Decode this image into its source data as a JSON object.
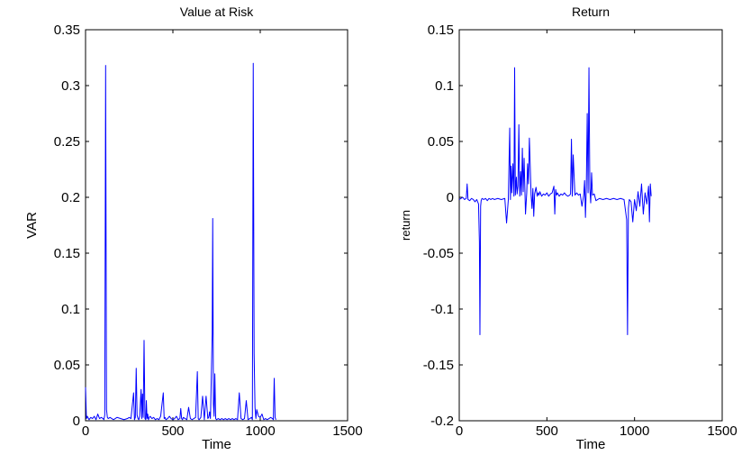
{
  "chart_data": [
    {
      "type": "line",
      "title": "Value at Risk",
      "xlabel": "Time",
      "ylabel": "VAR",
      "xlim": [
        0,
        1500
      ],
      "ylim": [
        0,
        0.35
      ],
      "x_ticks": [
        0,
        500,
        1000,
        1500
      ],
      "x_tick_labels": [
        "0",
        "500",
        "1000",
        "1500"
      ],
      "y_ticks": [
        0,
        0.05,
        0.1,
        0.15,
        0.2,
        0.25,
        0.3,
        0.35
      ],
      "y_tick_labels": [
        "0",
        "0.05",
        "0.1",
        "0.15",
        "0.2",
        "0.25",
        "0.3",
        "0.35"
      ],
      "grid": false,
      "color": "#0000ff",
      "series": [
        {
          "x": [
            0,
            5,
            10,
            20,
            30,
            40,
            50,
            60,
            70,
            80,
            90,
            100,
            105,
            110,
            115,
            120,
            125,
            130,
            140,
            150,
            160,
            170,
            180,
            200,
            220,
            240,
            250,
            260,
            275,
            280,
            285,
            290,
            295,
            300,
            305,
            310,
            318,
            322,
            326,
            330,
            335,
            340,
            345,
            348,
            352,
            356,
            360,
            365,
            370,
            380,
            390,
            400,
            410,
            420,
            430,
            445,
            450,
            455,
            460,
            470,
            480,
            490,
            500,
            510,
            520,
            530,
            540,
            545,
            550,
            555,
            560,
            570,
            580,
            590,
            600,
            610,
            620,
            630,
            640,
            645,
            650,
            660,
            670,
            680,
            690,
            700,
            705,
            710,
            715,
            720,
            725,
            728,
            732,
            736,
            740,
            745,
            750,
            760,
            770,
            780,
            790,
            800,
            810,
            820,
            830,
            840,
            850,
            860,
            870,
            880,
            890,
            900,
            910,
            920,
            930,
            940,
            950,
            955,
            960,
            965,
            970,
            975,
            980,
            990,
            1000,
            1010,
            1020,
            1030,
            1040,
            1050,
            1060,
            1070,
            1075,
            1080,
            1085,
            1090
          ],
          "y": [
            0.03,
            0.002,
            0.004,
            0.001,
            0.003,
            0.002,
            0.004,
            0.001,
            0.006,
            0.002,
            0.003,
            0.002,
            0.001,
            0.005,
            0.318,
            0.01,
            0.003,
            0.002,
            0.003,
            0.002,
            0.001,
            0.002,
            0.003,
            0.002,
            0.001,
            0.002,
            0.003,
            0.002,
            0.025,
            0.001,
            0.003,
            0.047,
            0.005,
            0.002,
            0.001,
            0.004,
            0.028,
            0.002,
            0.024,
            0.003,
            0.072,
            0.002,
            0.001,
            0.018,
            0.002,
            0.006,
            0.001,
            0.003,
            0.004,
            0.002,
            0.003,
            0.001,
            0.002,
            0.001,
            0.004,
            0.025,
            0.002,
            0.003,
            0.001,
            0.002,
            0.004,
            0.002,
            0.001,
            0.002,
            0.004,
            0.001,
            0.002,
            0.011,
            0.002,
            0.001,
            0.003,
            0.002,
            0.001,
            0.012,
            0.002,
            0.001,
            0.002,
            0.003,
            0.044,
            0.002,
            0.001,
            0.003,
            0.022,
            0.001,
            0.022,
            0.002,
            0.003,
            0.008,
            0.002,
            0.04,
            0.078,
            0.181,
            0.015,
            0.004,
            0.042,
            0.002,
            0.001,
            0.002,
            0.001,
            0.002,
            0.001,
            0.002,
            0.001,
            0.002,
            0.001,
            0.002,
            0.001,
            0.002,
            0.001,
            0.025,
            0.002,
            0.001,
            0.002,
            0.018,
            0.001,
            0.002,
            0.003,
            0.001,
            0.32,
            0.06,
            0.012,
            0.002,
            0.01,
            0.004,
            0.003,
            0.006,
            0.001,
            0.002,
            0.001,
            0.002,
            0.003,
            0.002,
            0.001,
            0.038,
            0.003,
            0.001
          ]
        }
      ]
    },
    {
      "type": "line",
      "title": "Return",
      "xlabel": "Time",
      "ylabel": "return",
      "xlim": [
        0,
        1500
      ],
      "ylim": [
        -0.2,
        0.15
      ],
      "x_ticks": [
        0,
        500,
        1000,
        1500
      ],
      "x_tick_labels": [
        "0",
        "500",
        "1000",
        "1500"
      ],
      "y_ticks": [
        -0.2,
        -0.15,
        -0.1,
        -0.05,
        0,
        0.05,
        0.1,
        0.15
      ],
      "y_tick_labels": [
        "-0.2",
        "-0.15",
        "-0.1",
        "-0.05",
        "0",
        "0.05",
        "0.1",
        "0.15"
      ],
      "grid": false,
      "color": "#0000ff",
      "series": [
        {
          "x": [
            0,
            10,
            20,
            30,
            40,
            45,
            50,
            60,
            70,
            80,
            90,
            100,
            110,
            115,
            118,
            122,
            125,
            130,
            140,
            150,
            160,
            170,
            180,
            190,
            200,
            220,
            240,
            260,
            270,
            280,
            288,
            292,
            296,
            300,
            306,
            312,
            316,
            320,
            326,
            330,
            335,
            340,
            345,
            350,
            355,
            360,
            365,
            370,
            378,
            385,
            390,
            395,
            400,
            410,
            415,
            420,
            425,
            430,
            438,
            445,
            450,
            455,
            460,
            470,
            480,
            490,
            500,
            510,
            520,
            530,
            540,
            545,
            550,
            555,
            560,
            570,
            580,
            590,
            600,
            610,
            620,
            630,
            635,
            640,
            645,
            650,
            660,
            670,
            680,
            690,
            700,
            710,
            715,
            720,
            725,
            730,
            735,
            740,
            745,
            750,
            755,
            760,
            770,
            780,
            790,
            800,
            820,
            840,
            860,
            880,
            900,
            920,
            940,
            955,
            960,
            965,
            970,
            980,
            990,
            1000,
            1010,
            1020,
            1030,
            1040,
            1050,
            1060,
            1070,
            1080,
            1085,
            1090,
            1095
          ],
          "y": [
            -0.002,
            -0.001,
            0.0,
            -0.002,
            -0.001,
            0.012,
            -0.002,
            -0.003,
            -0.001,
            -0.002,
            -0.004,
            -0.002,
            -0.006,
            -0.04,
            -0.123,
            -0.008,
            -0.003,
            -0.001,
            -0.002,
            -0.001,
            -0.003,
            -0.001,
            -0.002,
            -0.001,
            -0.002,
            -0.001,
            -0.002,
            -0.001,
            -0.023,
            -0.002,
            0.062,
            -0.002,
            0.028,
            0.004,
            0.03,
            0.001,
            0.116,
            0.002,
            0.018,
            0.003,
            0.01,
            0.065,
            0.001,
            0.023,
            0.002,
            0.044,
            0.005,
            0.035,
            -0.015,
            0.004,
            0.03,
            0.012,
            0.053,
            0.002,
            -0.01,
            0.008,
            -0.017,
            0.003,
            0.009,
            0.001,
            0.004,
            0.002,
            0.005,
            0.001,
            0.003,
            0.002,
            0.004,
            0.001,
            0.003,
            0.004,
            0.01,
            -0.015,
            0.007,
            0.002,
            0.004,
            0.001,
            0.003,
            0.002,
            0.004,
            0.002,
            0.001,
            0.002,
            0.003,
            0.052,
            0.001,
            0.038,
            0.002,
            0.004,
            0.002,
            0.003,
            -0.008,
            0.002,
            0.015,
            -0.018,
            0.01,
            0.075,
            0.004,
            0.116,
            0.008,
            -0.005,
            0.022,
            0.002,
            0.003,
            -0.003,
            -0.002,
            -0.001,
            -0.002,
            -0.001,
            -0.002,
            -0.001,
            -0.002,
            -0.001,
            -0.002,
            -0.02,
            -0.123,
            -0.01,
            -0.002,
            -0.004,
            -0.022,
            -0.002,
            -0.012,
            0.005,
            -0.008,
            0.012,
            -0.015,
            0.004,
            -0.006,
            0.01,
            -0.022,
            0.012,
            0.001
          ]
        }
      ]
    }
  ]
}
